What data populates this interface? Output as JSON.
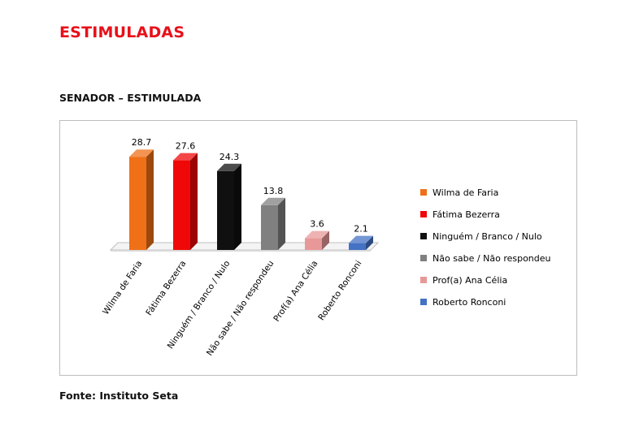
{
  "page": {
    "heading": "ESTIMULADAS",
    "subheading": "SENADOR – ESTIMULADA",
    "source": "Fonte: Instituto Seta"
  },
  "chart_data": {
    "type": "bar",
    "categories": [
      "Wilma de Faria",
      "Fátima Bezerra",
      "Ninguém / Branco / Nulo",
      "Não sabe / Não respondeu",
      "Prof(a) Ana Célia",
      "Roberto Ronconi"
    ],
    "values": [
      28.7,
      27.6,
      24.3,
      13.8,
      3.6,
      2.1
    ],
    "colors": [
      "#f07018",
      "#f00808",
      "#101010",
      "#808080",
      "#e89898",
      "#4472c4"
    ],
    "data_labels": [
      "28.7",
      "27.6",
      "24.3",
      "13.8",
      "3.6",
      "2.1"
    ],
    "legend": [
      "Wilma de Faria",
      "Fátima Bezerra",
      "Ninguém / Branco / Nulo",
      "Não sabe / Não respondeu",
      "Prof(a) Ana Célia",
      "Roberto Ronconi"
    ],
    "legend_position": "right",
    "ylim": [
      0,
      30
    ],
    "grid": false,
    "style": "3d-columns"
  }
}
